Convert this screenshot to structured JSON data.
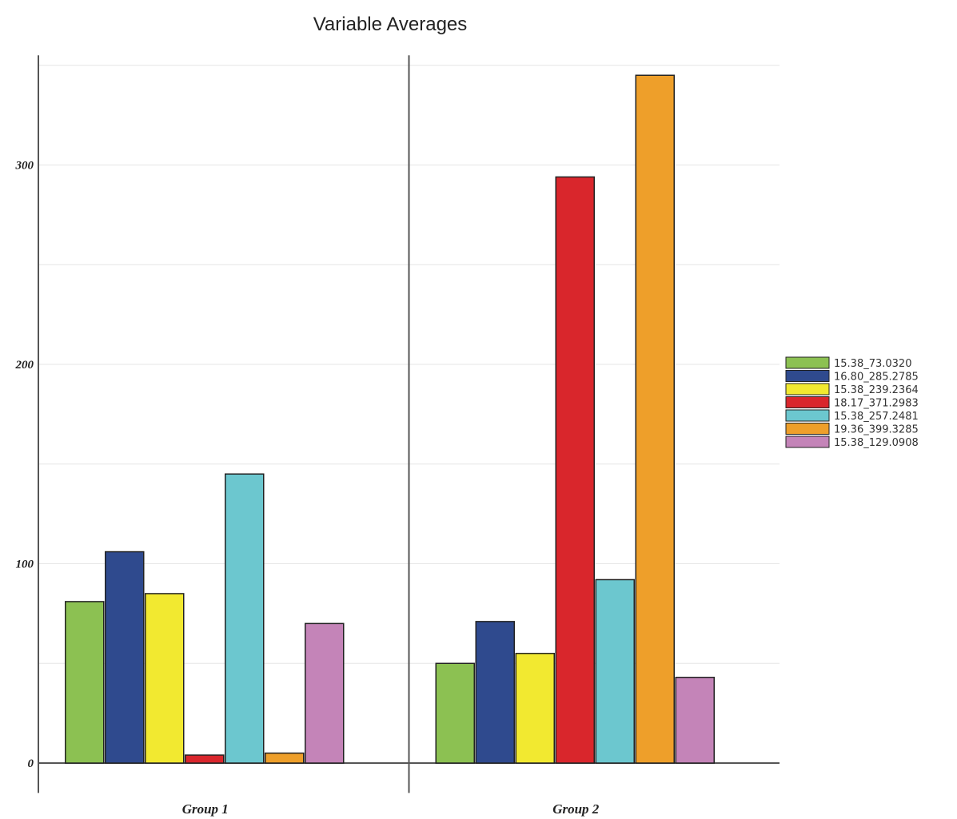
{
  "chart_data": {
    "type": "bar",
    "title": "Variable Averages",
    "xlabel": "",
    "ylabel": "",
    "categories": [
      "Group 1",
      "Group 2"
    ],
    "ylim": [
      -15,
      355
    ],
    "yticks": [
      0,
      100,
      200,
      300
    ],
    "grid": true,
    "legend_position": "right",
    "series": [
      {
        "name": "15.38_73.0320",
        "color": "#8cc152",
        "values": [
          81,
          50
        ]
      },
      {
        "name": "16.80_285.2785",
        "color": "#2f4a8e",
        "values": [
          106,
          71
        ]
      },
      {
        "name": "15.38_239.2364",
        "color": "#f2e930",
        "values": [
          85,
          55
        ]
      },
      {
        "name": "18.17_371.2983",
        "color": "#d9262c",
        "values": [
          4,
          294
        ]
      },
      {
        "name": "15.38_257.2481",
        "color": "#6cc7cf",
        "values": [
          145,
          92
        ]
      },
      {
        "name": "19.36_399.3285",
        "color": "#ee9f2a",
        "values": [
          5,
          345
        ]
      },
      {
        "name": "15.38_129.0908",
        "color": "#c484b8",
        "values": [
          70,
          43
        ]
      }
    ]
  }
}
